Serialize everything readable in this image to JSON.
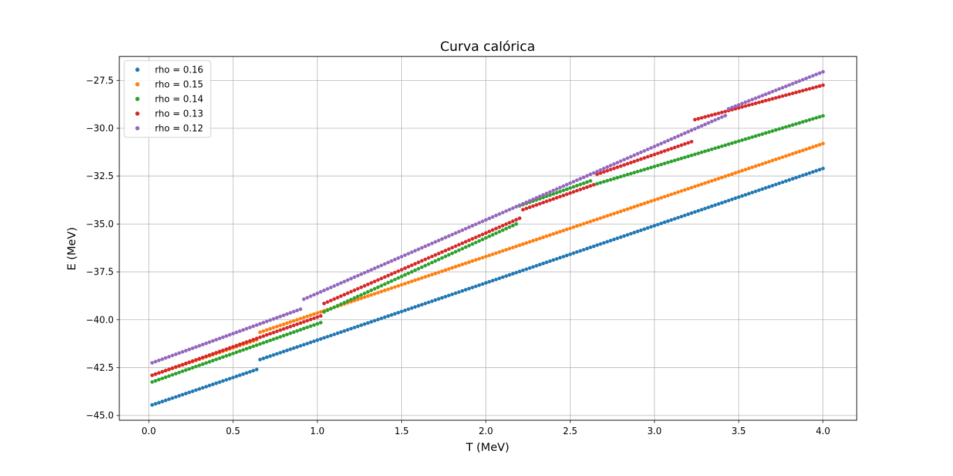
{
  "chart_data": {
    "type": "scatter",
    "title": "Curva calórica",
    "xlabel": "T (MeV)",
    "ylabel": "E (MeV)",
    "xlim": [
      -0.175,
      4.2
    ],
    "ylim": [
      -45.25,
      -26.25
    ],
    "xticks": [
      0.0,
      0.5,
      1.0,
      1.5,
      2.0,
      2.5,
      3.0,
      3.5,
      4.0
    ],
    "xtick_labels": [
      "0.0",
      "0.5",
      "1.0",
      "1.5",
      "2.0",
      "2.5",
      "3.0",
      "3.5",
      "4.0"
    ],
    "yticks": [
      -45.0,
      -42.5,
      -40.0,
      -37.5,
      -35.0,
      -32.5,
      -30.0,
      -27.5
    ],
    "ytick_labels": [
      "−45.0",
      "−42.5",
      "−40.0",
      "−37.5",
      "−35.0",
      "−32.5",
      "−30.0",
      "−27.5"
    ],
    "grid": true,
    "legend_position": "upper-left",
    "x_range": [
      0.02,
      4.0
    ],
    "points_per_series": 200,
    "series": [
      {
        "name": "rho = 0.16",
        "color": "#1f77b4",
        "segments": [
          {
            "x": [
              0.02,
              0.64
            ],
            "y": [
              -44.45,
              -42.6
            ]
          },
          {
            "x": [
              0.67,
              4.0
            ],
            "y": [
              -42.05,
              -32.1
            ]
          }
        ]
      },
      {
        "name": "rho = 0.15",
        "color": "#ff7f0e",
        "segments": [
          {
            "x": [
              0.02,
              0.64
            ],
            "y": [
              -42.9,
              -41.05
            ]
          },
          {
            "x": [
              0.66,
              4.0
            ],
            "y": [
              -40.65,
              -30.8
            ]
          }
        ]
      },
      {
        "name": "rho = 0.14",
        "color": "#2ca02c",
        "segments": [
          {
            "x": [
              0.02,
              1.02
            ],
            "y": [
              -43.25,
              -40.15
            ]
          },
          {
            "x": [
              1.05,
              2.18
            ],
            "y": [
              -39.55,
              -35.0
            ]
          },
          {
            "x": [
              2.2,
              2.62
            ],
            "y": [
              -34.05,
              -32.75
            ]
          },
          {
            "x": [
              2.64,
              4.0
            ],
            "y": [
              -32.95,
              -29.35
            ]
          }
        ]
      },
      {
        "name": "rho = 0.13",
        "color": "#d62728",
        "segments": [
          {
            "x": [
              0.02,
              1.02
            ],
            "y": [
              -42.9,
              -39.8
            ]
          },
          {
            "x": [
              1.04,
              2.2
            ],
            "y": [
              -39.15,
              -34.7
            ]
          },
          {
            "x": [
              2.22,
              2.64
            ],
            "y": [
              -34.25,
              -32.95
            ]
          },
          {
            "x": [
              2.66,
              3.22
            ],
            "y": [
              -32.4,
              -30.7
            ]
          },
          {
            "x": [
              3.24,
              4.0
            ],
            "y": [
              -29.55,
              -27.75
            ]
          }
        ]
      },
      {
        "name": "rho = 0.12",
        "color": "#9467bd",
        "segments": [
          {
            "x": [
              0.02,
              0.9
            ],
            "y": [
              -42.25,
              -39.45
            ]
          },
          {
            "x": [
              0.94,
              3.43
            ],
            "y": [
              -38.85,
              -29.3
            ]
          },
          {
            "x": [
              3.45,
              4.0
            ],
            "y": [
              -28.95,
              -27.05
            ]
          }
        ]
      }
    ]
  }
}
